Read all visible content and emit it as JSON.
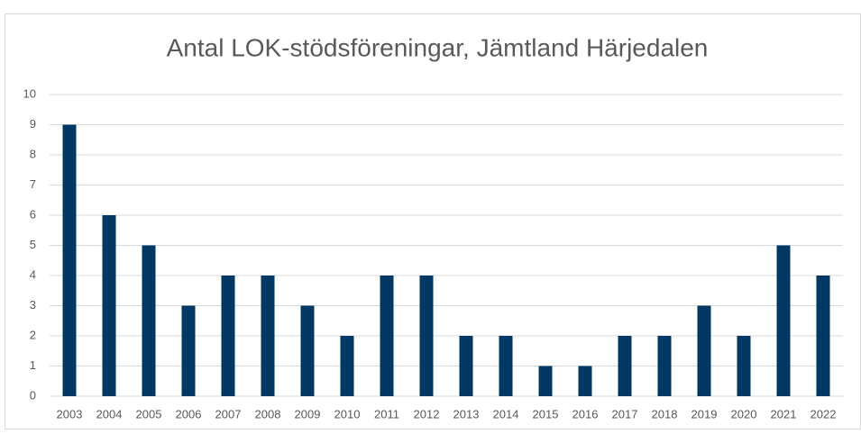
{
  "chart_data": {
    "type": "bar",
    "title": "Antal LOK-stödsföreningar, Jämtland Härjedalen",
    "categories": [
      "2003",
      "2004",
      "2005",
      "2006",
      "2007",
      "2008",
      "2009",
      "2010",
      "2011",
      "2012",
      "2013",
      "2014",
      "2015",
      "2016",
      "2017",
      "2018",
      "2019",
      "2020",
      "2021",
      "2022"
    ],
    "values": [
      9,
      6,
      5,
      3,
      4,
      4,
      3,
      2,
      4,
      4,
      2,
      2,
      1,
      1,
      2,
      2,
      3,
      2,
      5,
      4
    ],
    "color": "#003865",
    "ylim": [
      0,
      10
    ],
    "yticks": [
      0,
      1,
      2,
      3,
      4,
      5,
      6,
      7,
      8,
      9,
      10
    ],
    "grid": true
  }
}
